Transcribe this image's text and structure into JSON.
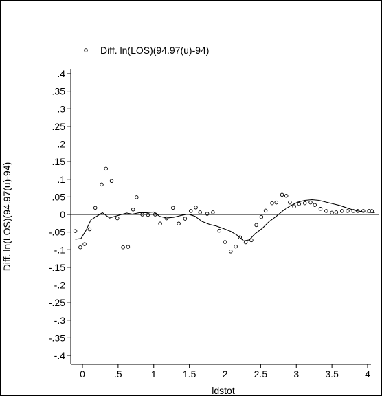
{
  "chart_data": {
    "type": "scatter",
    "title": "",
    "xlabel": "ldstot",
    "ylabel": "Diff. ln(LOS)(94.97(u)-94)",
    "legend": {
      "position": "top-left",
      "label": "Diff. ln(LOS)(94.97(u)-94)"
    },
    "xlim": [
      -0.15,
      4.15
    ],
    "ylim": [
      -0.42,
      0.42
    ],
    "xticks": [
      {
        "value": 0,
        "label": "0"
      },
      {
        "value": 0.5,
        "label": ".5"
      },
      {
        "value": 1,
        "label": "1"
      },
      {
        "value": 1.5,
        "label": "1.5"
      },
      {
        "value": 2,
        "label": "2"
      },
      {
        "value": 2.5,
        "label": "2.5"
      },
      {
        "value": 3,
        "label": "3"
      },
      {
        "value": 3.5,
        "label": "3.5"
      },
      {
        "value": 4,
        "label": "4"
      }
    ],
    "yticks": [
      {
        "value": 0.4,
        "label": ".4"
      },
      {
        "value": 0.35,
        "label": ".35"
      },
      {
        "value": 0.3,
        "label": ".3"
      },
      {
        "value": 0.25,
        "label": ".25"
      },
      {
        "value": 0.2,
        "label": ".2"
      },
      {
        "value": 0.15,
        "label": ".15"
      },
      {
        "value": 0.1,
        "label": ".1"
      },
      {
        "value": 0.05,
        "label": ".05"
      },
      {
        "value": 0,
        "label": "0"
      },
      {
        "value": -0.05,
        "label": "-.05"
      },
      {
        "value": -0.1,
        "label": "-.1"
      },
      {
        "value": -0.15,
        "label": "-.15"
      },
      {
        "value": -0.2,
        "label": "-.2"
      },
      {
        "value": -0.25,
        "label": "-.25"
      },
      {
        "value": -0.3,
        "label": "-.3"
      },
      {
        "value": -0.35,
        "label": "-.35"
      },
      {
        "value": -0.4,
        "label": "-.4"
      }
    ],
    "reference_line_y": 0,
    "grid": false,
    "series": [
      {
        "name": "Diff. ln(LOS)(94.97(u)-94)",
        "kind": "scatter",
        "marker": "hollow-circle",
        "x": [
          -0.1,
          -0.03,
          0.03,
          0.1,
          0.18,
          0.27,
          0.33,
          0.41,
          0.49,
          0.57,
          0.64,
          0.71,
          0.76,
          0.84,
          0.92,
          1.02,
          1.09,
          1.18,
          1.27,
          1.35,
          1.44,
          1.52,
          1.59,
          1.65,
          1.75,
          1.83,
          1.92,
          2.0,
          2.08,
          2.15,
          2.21,
          2.29,
          2.37,
          2.44,
          2.51,
          2.57,
          2.66,
          2.72,
          2.8,
          2.86,
          2.91,
          2.97,
          3.04,
          3.12,
          3.2,
          3.26,
          3.34,
          3.42,
          3.5,
          3.56,
          3.64,
          3.72,
          3.8,
          3.86,
          3.94,
          4.02,
          4.06
        ],
        "y": [
          -0.047,
          -0.093,
          -0.084,
          -0.042,
          0.019,
          0.085,
          0.13,
          0.095,
          -0.011,
          -0.093,
          -0.092,
          0.014,
          0.049,
          0.0,
          -0.001,
          0.0,
          -0.026,
          -0.011,
          0.019,
          -0.026,
          -0.012,
          0.01,
          0.02,
          0.006,
          0.002,
          0.006,
          -0.046,
          -0.078,
          -0.105,
          -0.091,
          -0.065,
          -0.079,
          -0.073,
          -0.03,
          -0.007,
          0.011,
          0.032,
          0.034,
          0.056,
          0.053,
          0.034,
          0.023,
          0.03,
          0.032,
          0.034,
          0.027,
          0.016,
          0.01,
          0.005,
          0.006,
          0.01,
          0.01,
          0.01,
          0.01,
          0.01,
          0.01,
          0.01
        ]
      },
      {
        "name": "",
        "kind": "line",
        "x": [
          -0.1,
          -0.02,
          0.05,
          0.12,
          0.2,
          0.28,
          0.38,
          0.46,
          0.55,
          0.62,
          0.7,
          0.8,
          0.9,
          1.0,
          1.08,
          1.18,
          1.28,
          1.38,
          1.48,
          1.58,
          1.68,
          1.78,
          1.88,
          1.98,
          2.08,
          2.18,
          2.26,
          2.34,
          2.42,
          2.52,
          2.62,
          2.72,
          2.82,
          2.92,
          3.02,
          3.12,
          3.22,
          3.32,
          3.42,
          3.52,
          3.62,
          3.72,
          3.82,
          3.92,
          4.02,
          4.1
        ],
        "y": [
          -0.07,
          -0.068,
          -0.045,
          -0.015,
          -0.005,
          0.005,
          -0.01,
          -0.005,
          0.0,
          0.004,
          0.001,
          0.005,
          0.005,
          0.007,
          -0.005,
          -0.01,
          -0.008,
          -0.003,
          0.001,
          -0.005,
          -0.02,
          -0.028,
          -0.033,
          -0.04,
          -0.048,
          -0.06,
          -0.075,
          -0.072,
          -0.055,
          -0.04,
          -0.02,
          -0.005,
          0.012,
          0.025,
          0.035,
          0.04,
          0.042,
          0.04,
          0.035,
          0.03,
          0.025,
          0.018,
          0.012,
          0.008,
          0.006,
          0.005
        ]
      }
    ]
  }
}
